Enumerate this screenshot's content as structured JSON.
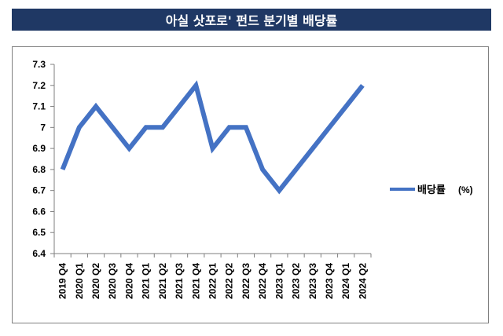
{
  "header": {
    "title": "아실 삿포로' 펀드 분기별 배당률"
  },
  "chart_data": {
    "type": "line",
    "title": "아실 삿포로' 펀드 분기별 배당률",
    "xlabel": "",
    "ylabel": "",
    "categories": [
      "2019 Q4",
      "2020 Q1",
      "2020 Q2",
      "2020 Q3",
      "2020 Q4",
      "2021 Q1",
      "2021 Q2",
      "2021 Q3",
      "2021 Q4",
      "2022 Q1",
      "2022 Q2",
      "2022 Q3",
      "2022 Q4",
      "2023 Q1",
      "2023 Q2",
      "2023 Q3",
      "2023 Q4",
      "2024 Q1",
      "2024 Q2"
    ],
    "series": [
      {
        "name": "배당률",
        "unit": "(%)",
        "values": [
          6.8,
          7.0,
          7.1,
          7.0,
          6.9,
          7.0,
          7.0,
          7.1,
          7.2,
          6.9,
          7.0,
          7.0,
          6.8,
          6.7,
          6.8,
          6.9,
          7.0,
          7.1,
          7.2
        ]
      }
    ],
    "ylim": [
      6.4,
      7.3
    ],
    "yticks": [
      "7.3",
      "7.2",
      "7.1",
      "7",
      "6.9",
      "6.8",
      "6.7",
      "6.6",
      "6.5",
      "6.4"
    ],
    "grid": false,
    "legend": "right",
    "colors": {
      "line": "#4472c4",
      "axis": "#7f7f7f",
      "banner": "#1f3864"
    }
  }
}
